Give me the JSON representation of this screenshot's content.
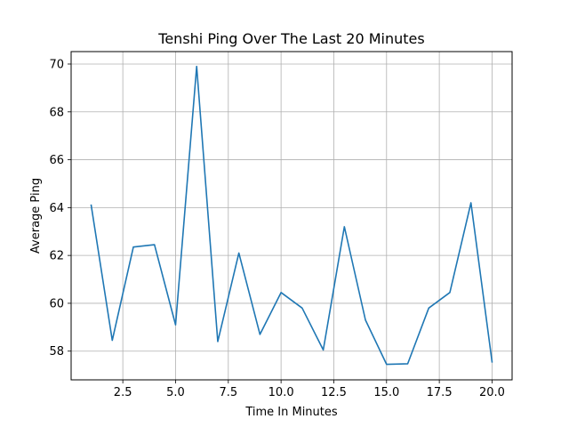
{
  "chart_data": {
    "type": "line",
    "title": "Tenshi Ping Over The Last 20 Minutes",
    "xlabel": "Time In Minutes",
    "ylabel": "Average Ping",
    "xlim": [
      0.05,
      20.95
    ],
    "ylim": [
      56.8,
      70.52
    ],
    "xticks": [
      2.5,
      5.0,
      7.5,
      10.0,
      12.5,
      15.0,
      17.5,
      20.0
    ],
    "xtick_labels": [
      "2.5",
      "5.0",
      "7.5",
      "10.0",
      "12.5",
      "15.0",
      "17.5",
      "20.0"
    ],
    "yticks": [
      58,
      60,
      62,
      64,
      66,
      68,
      70
    ],
    "ytick_labels": [
      "58",
      "60",
      "62",
      "64",
      "66",
      "68",
      "70"
    ],
    "grid": true,
    "line_color": "#1f77b4",
    "series": [
      {
        "x": [
          1,
          2,
          3,
          4,
          5,
          6,
          7,
          8,
          9,
          10,
          11,
          12,
          13,
          14,
          15,
          16,
          17,
          18,
          19,
          20
        ],
        "y": [
          64.1,
          58.45,
          62.35,
          62.45,
          59.1,
          69.9,
          58.4,
          62.1,
          58.7,
          60.45,
          59.8,
          58.05,
          63.2,
          59.3,
          57.45,
          57.47,
          59.8,
          60.45,
          64.2,
          57.55
        ]
      }
    ]
  }
}
